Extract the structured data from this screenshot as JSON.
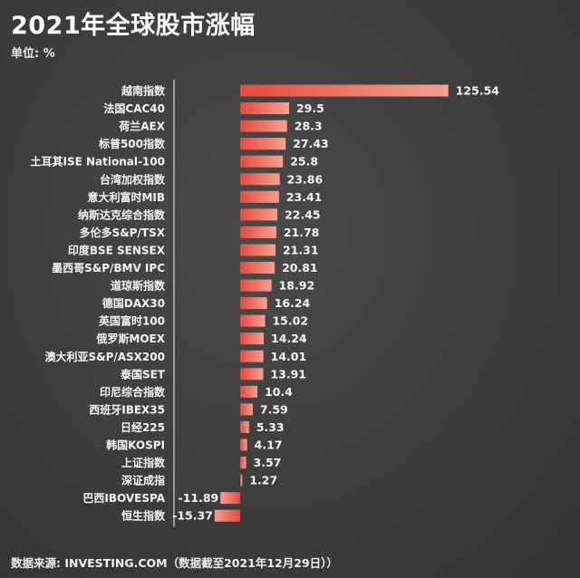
{
  "title": "2021年全球股市涨幅",
  "unit_text": "单位: %",
  "source_text": "数据来源: INVESTING.COM（数据截至2021年12月29日））",
  "colors": {
    "bar": "#ee5b4c",
    "bar_light": "#f7a08f",
    "axis": "#d8d8d8",
    "background": "#3d3d3d"
  },
  "chart_data": {
    "type": "bar",
    "orientation": "horizontal",
    "title": "2021年全球股市涨幅",
    "unit": "%",
    "grid": false,
    "legend": "none",
    "xlim": [
      -16,
      126
    ],
    "categories": [
      "越南指数",
      "法国CAC40",
      "荷兰AEX",
      "标普500指数",
      "土耳其ISE National-100",
      "台湾加权指数",
      "意大利富时MIB",
      "纳斯达克综合指数",
      "多伦多S&P/TSX",
      "印度BSE SENSEX",
      "墨西哥S&P/BMV IPC",
      "道琼斯指数",
      "德国DAX30",
      "英国富时100",
      "俄罗斯MOEX",
      "澳大利亚S&P/ASX200",
      "泰国SET",
      "印尼综合指数",
      "西班牙IBEX35",
      "日经225",
      "韩国KOSPI",
      "上证指数",
      "深证成指",
      "巴西IBOVESPA",
      "恒生指数"
    ],
    "values": [
      125.54,
      29.5,
      28.3,
      27.43,
      25.8,
      23.86,
      23.41,
      22.45,
      21.78,
      21.31,
      20.81,
      18.92,
      16.24,
      15.02,
      14.24,
      14.01,
      13.91,
      10.4,
      7.59,
      5.33,
      4.17,
      3.57,
      1.27,
      -11.89,
      -15.37
    ],
    "value_labels": [
      "125.54",
      "29.5",
      "28.3",
      "27.43",
      "25.8",
      "23.86",
      "23.41",
      "22.45",
      "21.78",
      "21.31",
      "20.81",
      "18.92",
      "16.24",
      "15.02",
      "14.24",
      "14.01",
      "13.91",
      "10.4",
      "7.59",
      "5.33",
      "4.17",
      "3.57",
      "1.27",
      "-11.89",
      "-15.37"
    ]
  }
}
